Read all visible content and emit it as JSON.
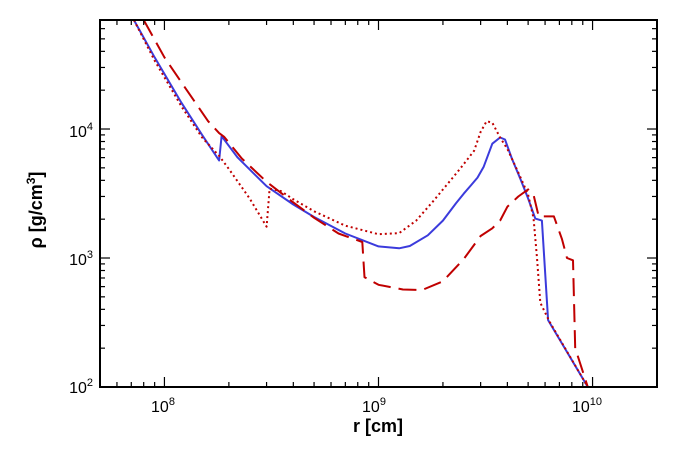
{
  "chart_data": {
    "type": "line",
    "xscale": "log",
    "yscale": "log",
    "xlim": [
      50000000,
      20000000000
    ],
    "ylim": [
      100,
      70000
    ],
    "xlabel": "r [cm]",
    "ylabel": "ρ [g/cm3]",
    "ylabel_parts": {
      "pre": "ρ [g/cm",
      "exp": "3",
      "post": "]"
    },
    "x_ticks": [
      {
        "value": 100000000,
        "base": "10",
        "exp": "8"
      },
      {
        "value": 1000000000,
        "base": "10",
        "exp": "9"
      },
      {
        "value": 10000000000,
        "base": "10",
        "exp": "10"
      }
    ],
    "y_ticks": [
      {
        "value": 100,
        "base": "10",
        "exp": "2"
      },
      {
        "value": 1000,
        "base": "10",
        "exp": "3"
      },
      {
        "value": 10000,
        "base": "10",
        "exp": "4"
      }
    ],
    "series": [
      {
        "name": "solid",
        "color": "#3b3bdc",
        "style": "solid",
        "x": [
          72000000,
          90000000,
          120000000,
          150000000,
          180000000,
          185000000,
          220000000,
          300000000,
          400000000,
          500000000,
          700000000,
          1000000000,
          1250000000,
          1400000000,
          1700000000,
          2000000000,
          2300000000,
          2500000000,
          2700000000,
          2900000000,
          3100000000,
          3400000000,
          3700000000,
          3900000000,
          4200000000,
          4600000000,
          5000000000,
          5400000000,
          5800000000,
          6200000000,
          9500000000
        ],
        "y": [
          70000,
          36000,
          16000,
          9000,
          5700,
          8800,
          6000,
          3600,
          2600,
          2080,
          1550,
          1230,
          1190,
          1240,
          1500,
          1950,
          2650,
          3150,
          3650,
          4200,
          5100,
          7700,
          8600,
          8300,
          5900,
          4100,
          2900,
          2020,
          1950,
          330,
          100
        ]
      },
      {
        "name": "dotted",
        "color": "#c00000",
        "style": "dotted",
        "x": [
          72000000,
          90000000,
          120000000,
          150000000,
          180000000,
          200000000,
          250000000,
          300000000,
          310000000,
          350000000,
          400000000,
          500000000,
          700000000,
          1000000000,
          1250000000,
          1500000000,
          1800000000,
          2100000000,
          2400000000,
          2600000000,
          2800000000,
          3000000000,
          3200000000,
          3400000000,
          3700000000,
          4000000000,
          4500000000,
          5000000000,
          5300000000,
          5500000000,
          5700000000,
          6300000000,
          9500000000
        ],
        "y": [
          70000,
          34000,
          15000,
          8600,
          6200,
          4900,
          2900,
          1750,
          3450,
          3300,
          2850,
          2300,
          1780,
          1530,
          1560,
          1950,
          2750,
          3750,
          4900,
          5800,
          6800,
          9500,
          11500,
          11200,
          8600,
          7000,
          4600,
          3100,
          2050,
          1000,
          450,
          320,
          100
        ]
      },
      {
        "name": "dashed",
        "color": "#c00000",
        "style": "dashed",
        "x": [
          80000000,
          100000000,
          130000000,
          160000000,
          180000000,
          190000000,
          230000000,
          300000000,
          400000000,
          500000000,
          650000000,
          840000000,
          860000000,
          1000000000,
          1300000000,
          1600000000,
          2000000000,
          2500000000,
          3000000000,
          3400000000,
          3700000000,
          4000000000,
          4500000000,
          5000000000,
          5300000000,
          5600000000,
          5900000000,
          6600000000,
          7200000000,
          7600000000,
          8100000000,
          8300000000,
          9500000000
        ],
        "y": [
          70000,
          36000,
          19000,
          11500,
          9300,
          8700,
          5900,
          3900,
          2700,
          2050,
          1550,
          1330,
          710,
          620,
          570,
          565,
          660,
          980,
          1480,
          1700,
          1950,
          2500,
          3000,
          3400,
          3100,
          2100,
          2100,
          2100,
          1400,
          1000,
          960,
          200,
          100
        ]
      }
    ]
  }
}
